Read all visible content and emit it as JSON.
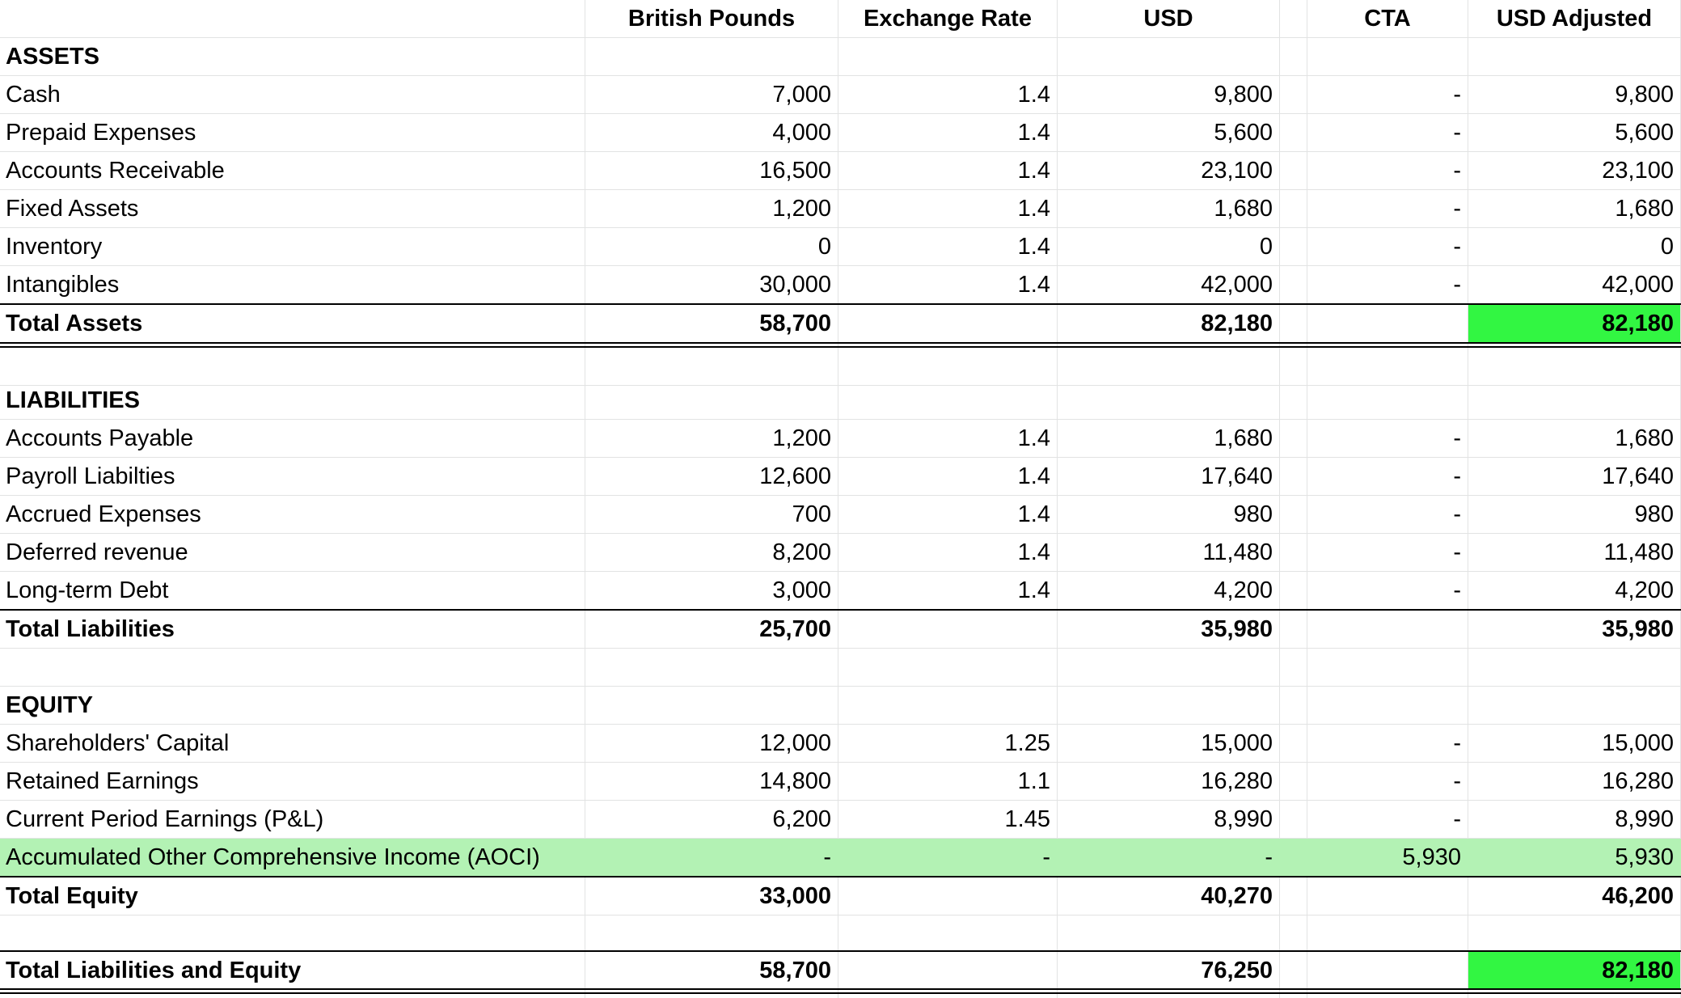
{
  "headers": {
    "gbp": "British Pounds",
    "rate": "Exchange Rate",
    "usd": "USD",
    "cta": "CTA",
    "usd_adj": "USD Adjusted"
  },
  "colors": {
    "total_highlight": "#32f642",
    "aoci_highlight": "#b3f2b4",
    "gridline": "#e2e3e3"
  },
  "assets": {
    "section": "ASSETS",
    "rows": [
      {
        "label": "Cash",
        "gbp": "7,000",
        "rate": "1.4",
        "usd": "9,800",
        "cta": "-",
        "usd_adj": "9,800"
      },
      {
        "label": "Prepaid Expenses",
        "gbp": "4,000",
        "rate": "1.4",
        "usd": "5,600",
        "cta": "-",
        "usd_adj": "5,600"
      },
      {
        "label": "Accounts Receivable",
        "gbp": "16,500",
        "rate": "1.4",
        "usd": "23,100",
        "cta": "-",
        "usd_adj": "23,100"
      },
      {
        "label": "Fixed Assets",
        "gbp": "1,200",
        "rate": "1.4",
        "usd": "1,680",
        "cta": "-",
        "usd_adj": "1,680"
      },
      {
        "label": "Inventory",
        "gbp": "0",
        "rate": "1.4",
        "usd": "0",
        "cta": "-",
        "usd_adj": "0"
      },
      {
        "label": "Intangibles",
        "gbp": "30,000",
        "rate": "1.4",
        "usd": "42,000",
        "cta": "-",
        "usd_adj": "42,000"
      }
    ],
    "total": {
      "label": "Total Assets",
      "gbp": "58,700",
      "usd": "82,180",
      "usd_adj": "82,180"
    }
  },
  "liabilities": {
    "section": "LIABILITIES",
    "rows": [
      {
        "label": "Accounts Payable",
        "gbp": "1,200",
        "rate": "1.4",
        "usd": "1,680",
        "cta": "-",
        "usd_adj": "1,680"
      },
      {
        "label": "Payroll Liabilties",
        "gbp": "12,600",
        "rate": "1.4",
        "usd": "17,640",
        "cta": "-",
        "usd_adj": "17,640"
      },
      {
        "label": "Accrued Expenses",
        "gbp": "700",
        "rate": "1.4",
        "usd": "980",
        "cta": "-",
        "usd_adj": "980"
      },
      {
        "label": "Deferred revenue",
        "gbp": "8,200",
        "rate": "1.4",
        "usd": "11,480",
        "cta": "-",
        "usd_adj": "11,480"
      },
      {
        "label": "Long-term Debt",
        "gbp": "3,000",
        "rate": "1.4",
        "usd": "4,200",
        "cta": "-",
        "usd_adj": "4,200"
      }
    ],
    "total": {
      "label": "Total Liabilities",
      "gbp": "25,700",
      "usd": "35,980",
      "usd_adj": "35,980"
    }
  },
  "equity": {
    "section": "EQUITY",
    "rows": [
      {
        "label": "Shareholders' Capital",
        "gbp": "12,000",
        "rate": "1.25",
        "usd": "15,000",
        "cta": "-",
        "usd_adj": "15,000"
      },
      {
        "label": "Retained Earnings",
        "gbp": "14,800",
        "rate": "1.1",
        "usd": "16,280",
        "cta": "-",
        "usd_adj": "16,280"
      },
      {
        "label": "Current Period Earnings (P&L)",
        "gbp": "6,200",
        "rate": "1.45",
        "usd": "8,990",
        "cta": "-",
        "usd_adj": "8,990"
      },
      {
        "label": "Accumulated Other Comprehensive Income (AOCI)",
        "gbp": "-",
        "rate": "-",
        "usd": "-",
        "cta": "5,930",
        "usd_adj": "5,930"
      }
    ],
    "total": {
      "label": "Total Equity",
      "gbp": "33,000",
      "usd": "40,270",
      "usd_adj": "46,200"
    }
  },
  "grand_total": {
    "label": "Total Liabilities and Equity",
    "gbp": "58,700",
    "usd": "76,250",
    "usd_adj": "82,180"
  }
}
